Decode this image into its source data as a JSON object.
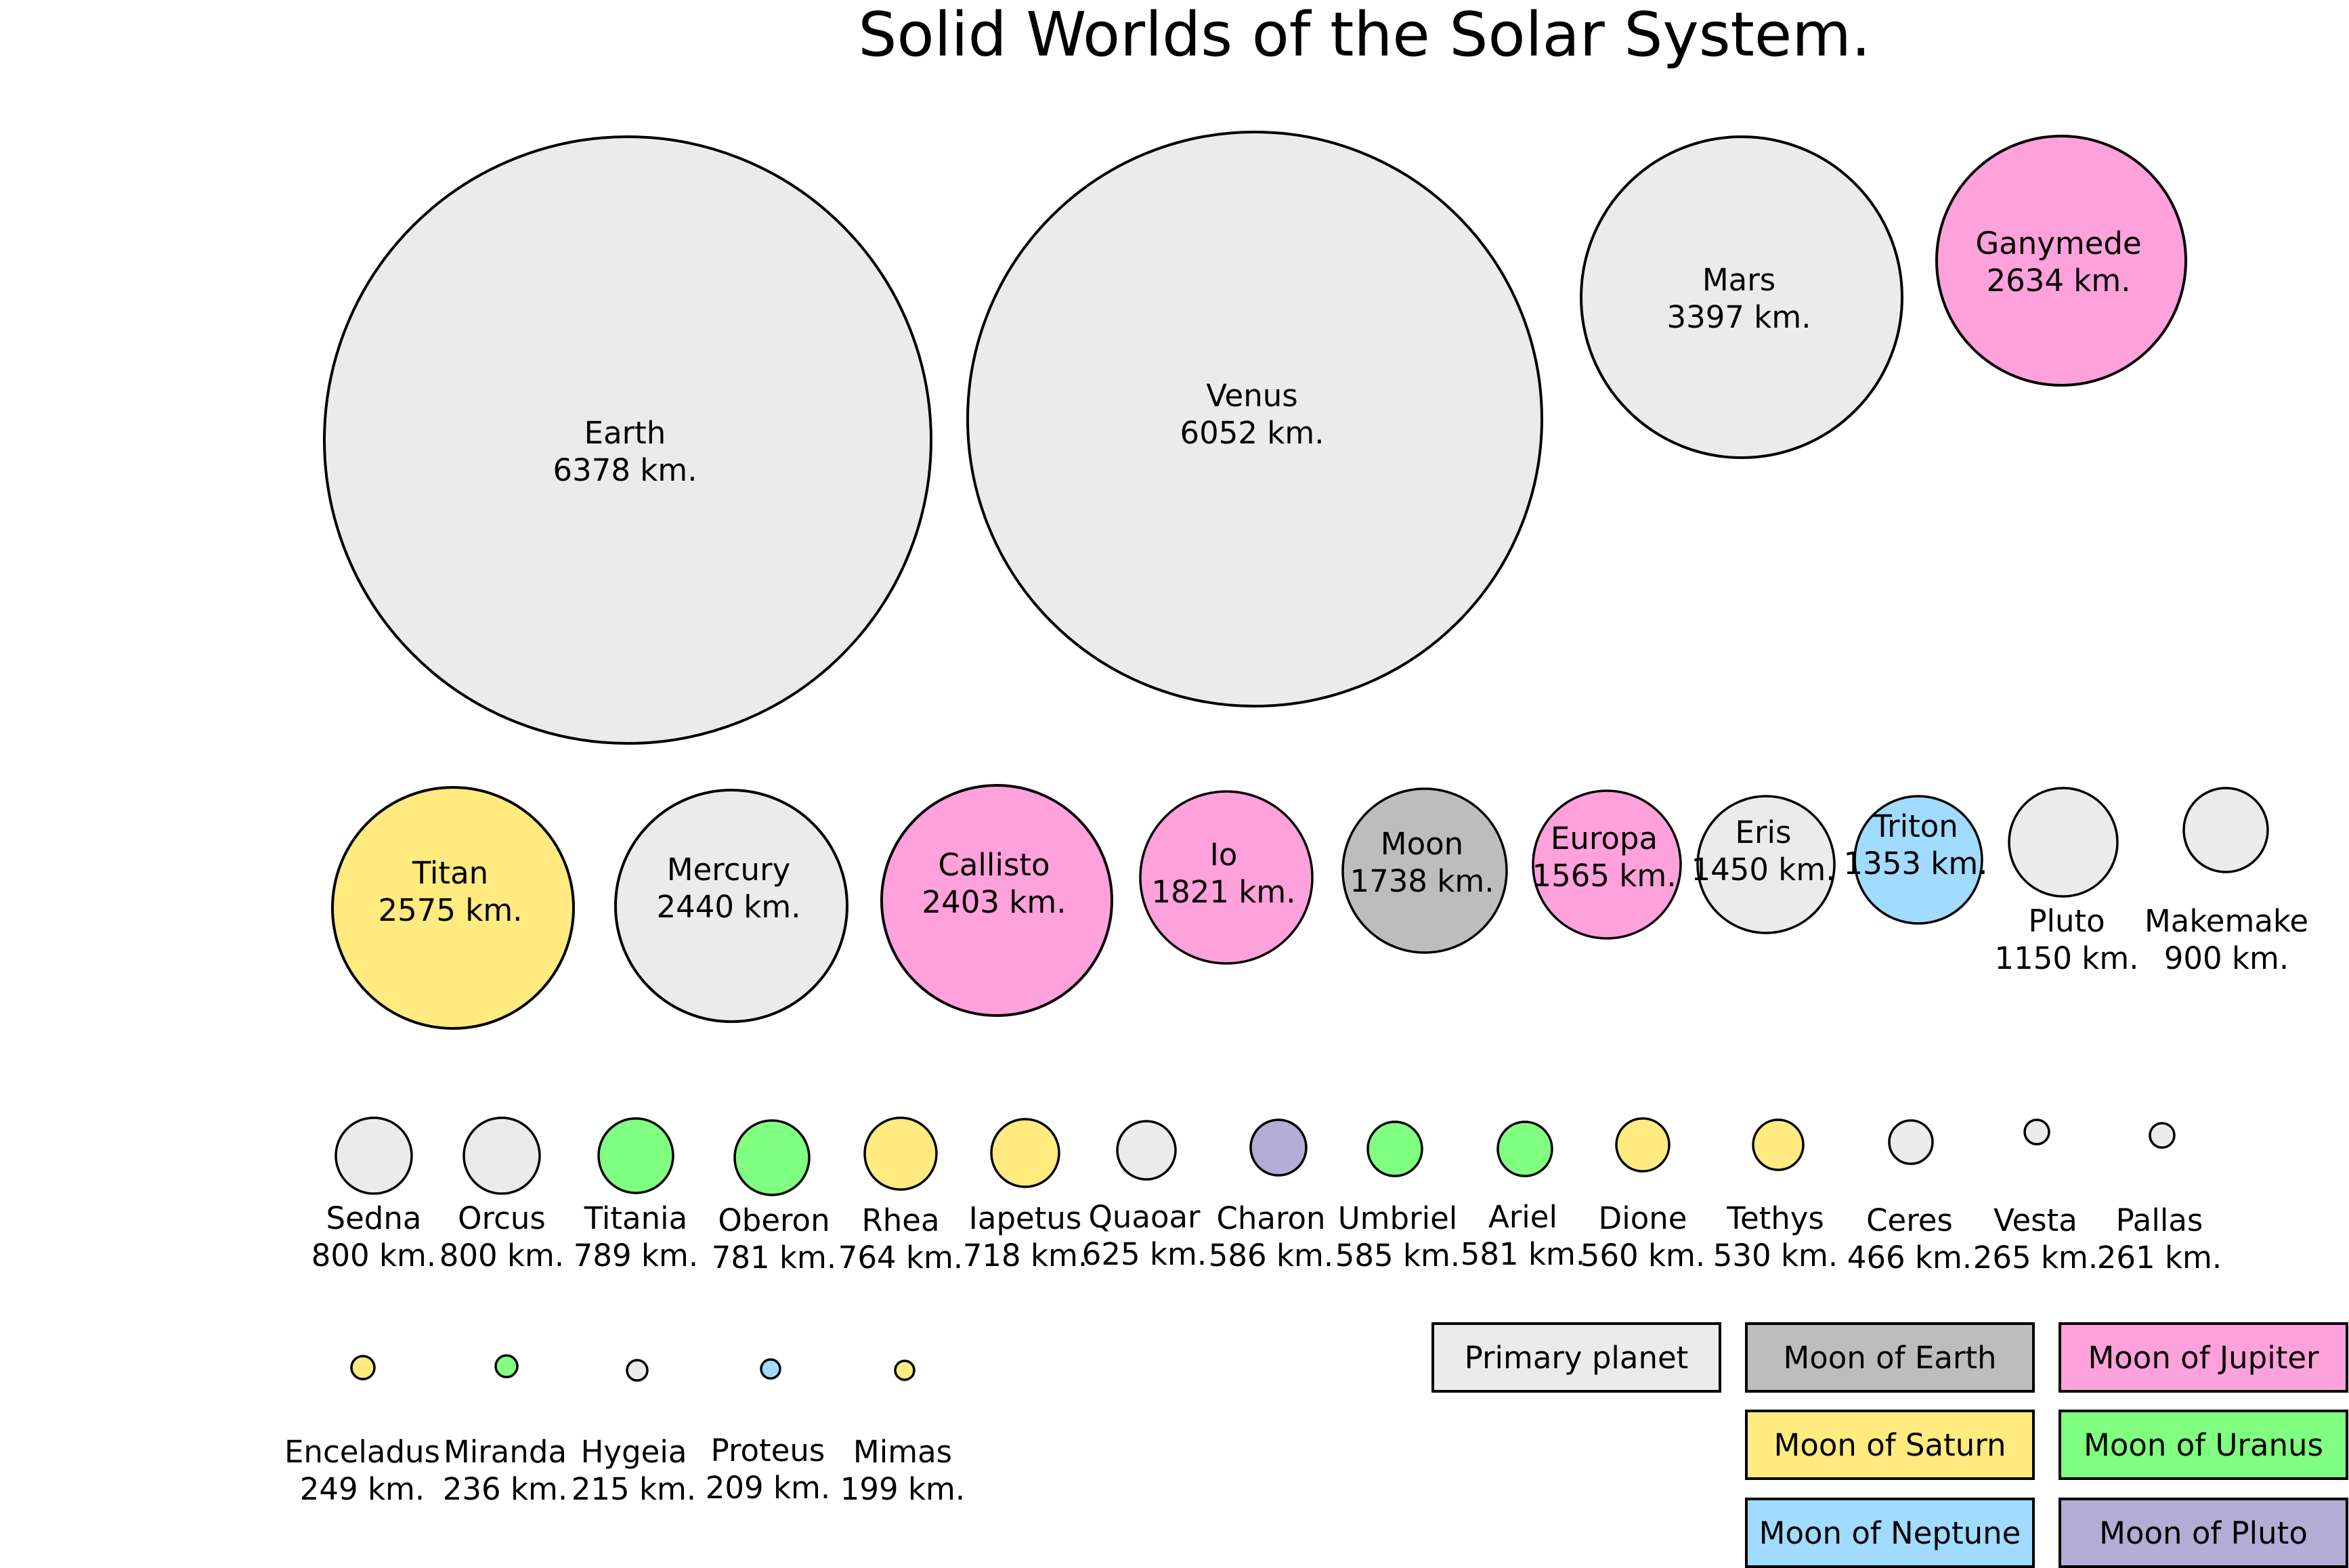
{
  "title": "Solid Worlds of the Solar System.",
  "unit": "km.",
  "category_colors": {
    "primary": "#ebebeb",
    "earth": "#bdbdbd",
    "jupiter": "#ffa1db",
    "saturn": "#ffeb80",
    "uranus": "#80ff80",
    "neptune": "#a1dbff",
    "pluto": "#b3acd4"
  },
  "bodies": [
    {
      "name": "Earth",
      "radius_km": "6378",
      "category": "primary"
    },
    {
      "name": "Venus",
      "radius_km": "6052",
      "category": "primary"
    },
    {
      "name": "Mars",
      "radius_km": "3397",
      "category": "primary"
    },
    {
      "name": "Ganymede",
      "radius_km": "2634",
      "category": "jupiter"
    },
    {
      "name": "Titan",
      "radius_km": "2575",
      "category": "saturn"
    },
    {
      "name": "Mercury",
      "radius_km": "2440",
      "category": "primary"
    },
    {
      "name": "Callisto",
      "radius_km": "2403",
      "category": "jupiter"
    },
    {
      "name": "Io",
      "radius_km": "1821",
      "category": "jupiter"
    },
    {
      "name": "Moon",
      "radius_km": "1738",
      "category": "earth"
    },
    {
      "name": "Europa",
      "radius_km": "1565",
      "category": "jupiter"
    },
    {
      "name": "Eris",
      "radius_km": "1450",
      "category": "primary"
    },
    {
      "name": "Triton",
      "radius_km": "1353",
      "category": "neptune"
    },
    {
      "name": "Pluto",
      "radius_km": "1150",
      "category": "primary"
    },
    {
      "name": "Makemake",
      "radius_km": "900",
      "category": "primary"
    },
    {
      "name": "Sedna",
      "radius_km": "800",
      "category": "primary"
    },
    {
      "name": "Orcus",
      "radius_km": "800",
      "category": "primary"
    },
    {
      "name": "Titania",
      "radius_km": "789",
      "category": "uranus"
    },
    {
      "name": "Oberon",
      "radius_km": "781",
      "category": "uranus"
    },
    {
      "name": "Rhea",
      "radius_km": "764",
      "category": "saturn"
    },
    {
      "name": "Iapetus",
      "radius_km": "718",
      "category": "saturn"
    },
    {
      "name": "Quaoar",
      "radius_km": "625",
      "category": "primary"
    },
    {
      "name": "Charon",
      "radius_km": "586",
      "category": "pluto"
    },
    {
      "name": "Umbriel",
      "radius_km": "585",
      "category": "uranus"
    },
    {
      "name": "Ariel",
      "radius_km": "581",
      "category": "uranus"
    },
    {
      "name": "Dione",
      "radius_km": "560",
      "category": "saturn"
    },
    {
      "name": "Tethys",
      "radius_km": "530",
      "category": "saturn"
    },
    {
      "name": "Ceres",
      "radius_km": "466",
      "category": "primary"
    },
    {
      "name": "Vesta",
      "radius_km": "265",
      "category": "primary"
    },
    {
      "name": "Pallas",
      "radius_km": "261",
      "category": "primary"
    },
    {
      "name": "Enceladus",
      "radius_km": "249",
      "category": "saturn"
    },
    {
      "name": "Miranda",
      "radius_km": "236",
      "category": "uranus"
    },
    {
      "name": "Hygeia",
      "radius_km": "215",
      "category": "primary"
    },
    {
      "name": "Proteus",
      "radius_km": "209",
      "category": "neptune"
    },
    {
      "name": "Mimas",
      "radius_km": "199",
      "category": "saturn"
    }
  ],
  "legend": [
    {
      "label": "Primary planet",
      "category": "primary"
    },
    {
      "label": "Moon of Earth",
      "category": "earth"
    },
    {
      "label": "Moon of Jupiter",
      "category": "jupiter"
    },
    {
      "label": "Moon of Saturn",
      "category": "saturn"
    },
    {
      "label": "Moon of Uranus",
      "category": "uranus"
    },
    {
      "label": "Moon of Neptune",
      "category": "neptune"
    },
    {
      "label": "Moon of Pluto",
      "category": "pluto"
    }
  ]
}
